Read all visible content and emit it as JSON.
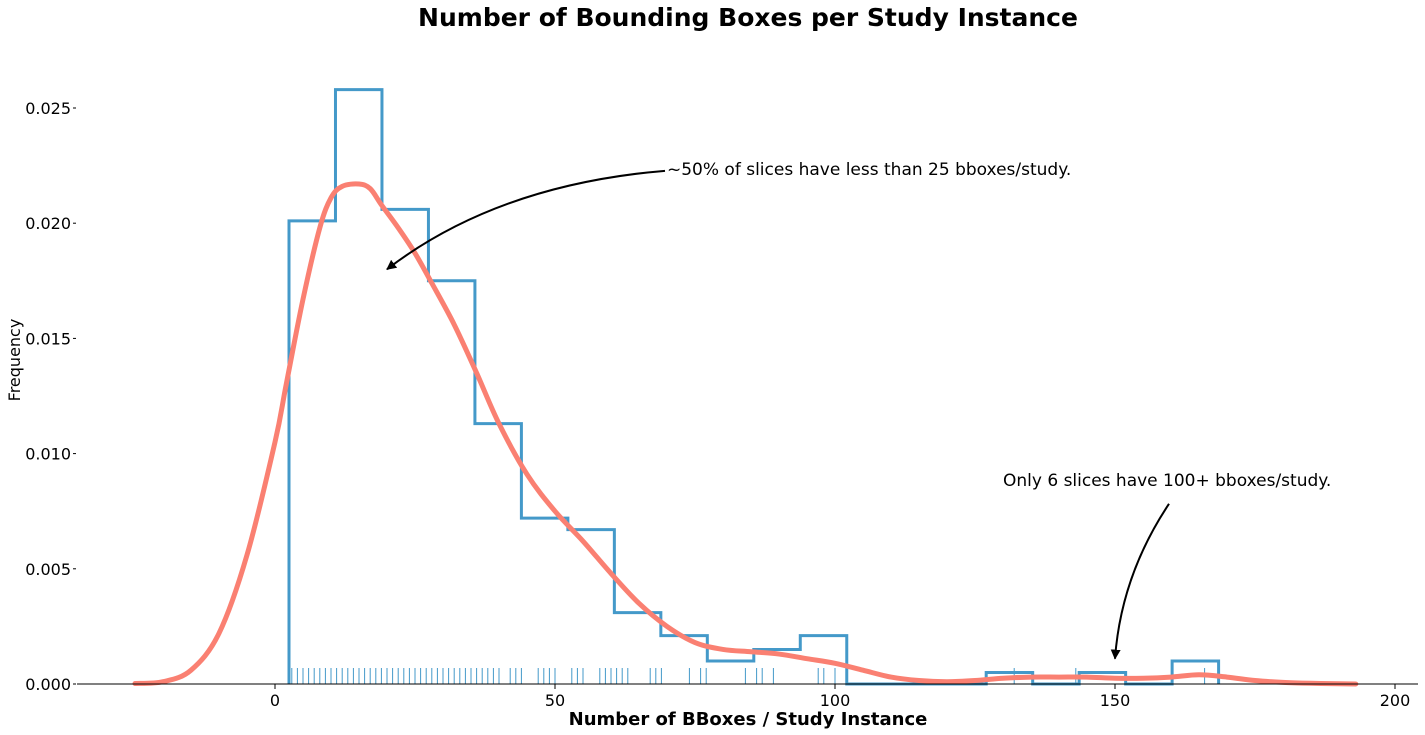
{
  "chart_data": {
    "type": "histogram",
    "title": "Number of Bounding Boxes per Study Instance",
    "xlabel": "Number of BBoxes / Study Instance",
    "ylabel": "Frequency",
    "xlim": [
      -35,
      203
    ],
    "ylim": [
      0,
      0.0275
    ],
    "x_ticks": [
      0,
      50,
      100,
      150,
      200
    ],
    "y_ticks": [
      0.0,
      0.005,
      0.01,
      0.015,
      0.02,
      0.025
    ],
    "x_tick_labels": [
      "0",
      "50",
      "100",
      "150",
      "200"
    ],
    "y_tick_labels": [
      "0.000",
      "0.005",
      "0.010",
      "0.015",
      "0.020",
      "0.025"
    ],
    "grid": false,
    "histogram": {
      "color": "#4499c9",
      "bin_edges": [
        2.5,
        10.8,
        19.1,
        27.4,
        35.7,
        44.0,
        52.3,
        60.6,
        68.9,
        77.2,
        85.5,
        93.8,
        102.1,
        110.4,
        118.7,
        127.0,
        135.3,
        143.6,
        151.9,
        160.2,
        168.5
      ],
      "densities": [
        0.0201,
        0.0258,
        0.0206,
        0.0175,
        0.0113,
        0.0072,
        0.0067,
        0.0031,
        0.0021,
        0.001,
        0.0015,
        0.0021,
        0.0,
        0.0,
        0.0,
        0.0005,
        0.0,
        0.0005,
        0.0,
        0.001
      ]
    },
    "kde": {
      "color": "#fa8072",
      "x": [
        -25,
        -20,
        -15,
        -10,
        -5,
        0,
        2,
        5,
        8,
        10,
        12,
        15,
        17,
        19,
        22,
        25,
        28,
        32,
        36,
        40,
        45,
        50,
        55,
        60,
        65,
        70,
        75,
        80,
        85,
        90,
        95,
        100,
        105,
        110,
        115,
        120,
        125,
        130,
        135,
        140,
        145,
        150,
        155,
        160,
        165,
        170,
        175,
        180,
        185,
        190,
        193
      ],
      "y": [
        2e-05,
        0.0001,
        0.0006,
        0.0022,
        0.0056,
        0.0105,
        0.013,
        0.0167,
        0.0198,
        0.0211,
        0.0216,
        0.0217,
        0.0215,
        0.0208,
        0.0198,
        0.0187,
        0.0174,
        0.0156,
        0.0135,
        0.0113,
        0.0091,
        0.0075,
        0.0062,
        0.0048,
        0.0035,
        0.0025,
        0.0018,
        0.0015,
        0.0014,
        0.0013,
        0.0011,
        0.0009,
        0.0006,
        0.0003,
        0.00015,
        0.0001,
        0.00015,
        0.00025,
        0.0003,
        0.0003,
        0.0003,
        0.00025,
        0.00025,
        0.0003,
        0.0004,
        0.0003,
        0.00015,
        7e-05,
        3e-05,
        1e-05,
        0.0
      ]
    },
    "rug": {
      "color": "#4499c9",
      "values": [
        3,
        4,
        5,
        6,
        7,
        8,
        9,
        10,
        11,
        12,
        13,
        14,
        15,
        16,
        17,
        18,
        19,
        20,
        21,
        22,
        23,
        24,
        25,
        26,
        27,
        28,
        29,
        30,
        31,
        32,
        33,
        34,
        35,
        36,
        37,
        38,
        39,
        40,
        42,
        43,
        44,
        47,
        48,
        49,
        50,
        53,
        54,
        55,
        58,
        59,
        60,
        61,
        62,
        63,
        67,
        68,
        69,
        74,
        76,
        77,
        84,
        86,
        87,
        89,
        97,
        98,
        100,
        132,
        143,
        166
      ]
    },
    "annotations": [
      {
        "text": "~50% of slices have less than 25 bboxes/study.",
        "text_at": [
          70,
          0.0221
        ],
        "arrow_to": [
          20,
          0.018
        ]
      },
      {
        "text": "Only 6 slices have 100+ bboxes/study.",
        "text_at": [
          130,
          0.0086
        ],
        "arrow_to": [
          150,
          0.0011
        ]
      }
    ]
  }
}
